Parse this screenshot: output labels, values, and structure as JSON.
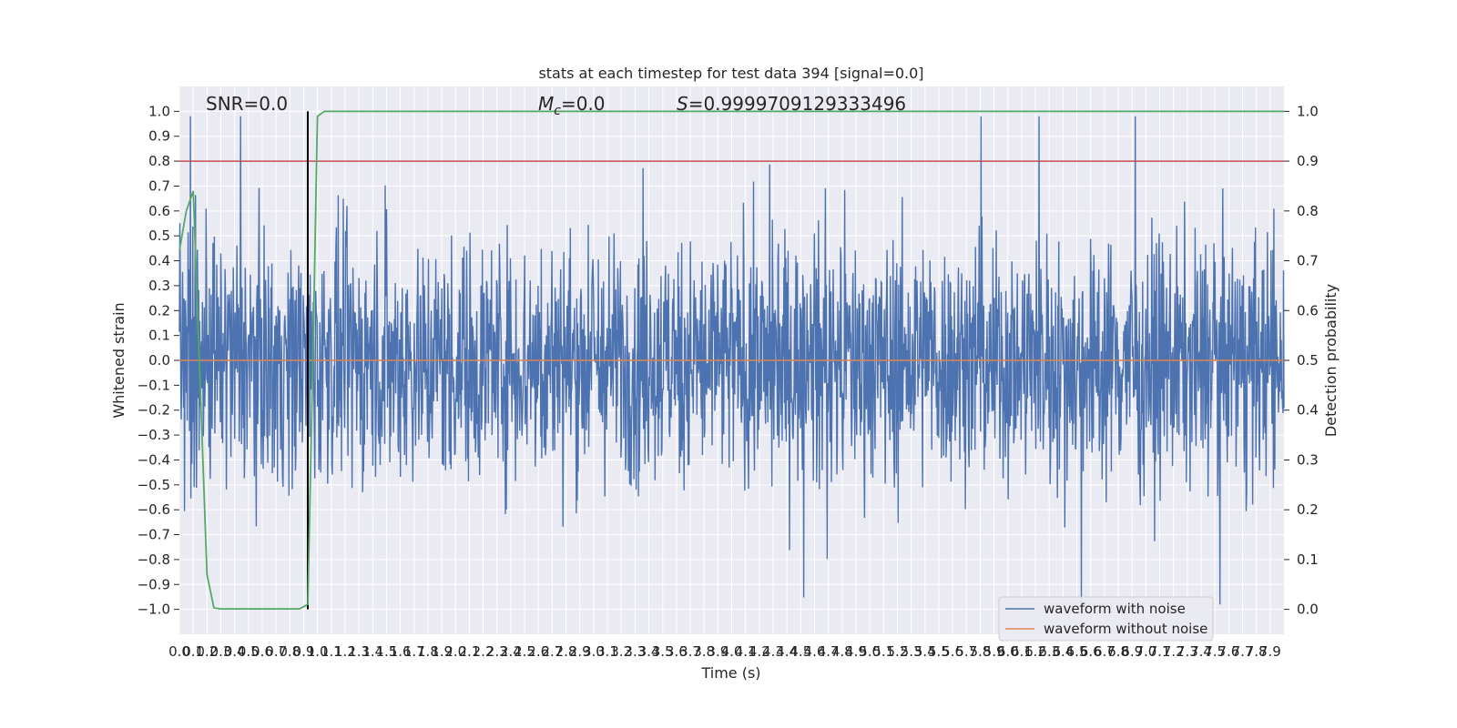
{
  "chart_data": {
    "type": "line",
    "title": "stats at each timestep for test data 394 [signal=0.0]",
    "xlabel": "Time (s)",
    "ylabel": "Whitened strain",
    "y2label": "Detection probability",
    "xlim": [
      0.0,
      8.0
    ],
    "ylim": [
      -1.1,
      1.1
    ],
    "y2lim": [
      -0.05,
      1.05
    ],
    "grid": true,
    "x_ticks": [
      "0.0",
      "0.1",
      "0.2",
      "0.3",
      "0.4",
      "0.5",
      "0.6",
      "0.7",
      "0.8",
      "0.9",
      "1.0",
      "1.1",
      "1.2",
      "1.3",
      "1.4",
      "1.5",
      "1.6",
      "1.7",
      "1.8",
      "1.9",
      "2.0",
      "2.1",
      "2.2",
      "2.3",
      "2.4",
      "2.5",
      "2.6",
      "2.7",
      "2.8",
      "2.9",
      "3.0",
      "3.1",
      "3.2",
      "3.3",
      "3.4",
      "3.5",
      "3.6",
      "3.7",
      "3.8",
      "3.9",
      "4.0",
      "4.1",
      "4.2",
      "4.3",
      "4.4",
      "4.5",
      "4.6",
      "4.7",
      "4.8",
      "4.9",
      "5.0",
      "5.1",
      "5.2",
      "5.3",
      "5.4",
      "5.5",
      "5.6",
      "5.7",
      "5.8",
      "5.9",
      "6.0",
      "6.1",
      "6.2",
      "6.3",
      "6.4",
      "6.5",
      "6.6",
      "6.7",
      "6.8",
      "6.9",
      "7.0",
      "7.1",
      "7.2",
      "7.3",
      "7.4",
      "7.5",
      "7.6",
      "7.7",
      "7.8",
      "7.9"
    ],
    "y_ticks": [
      "1.0",
      "0.9",
      "0.8",
      "0.7",
      "0.6",
      "0.5",
      "0.4",
      "0.3",
      "0.2",
      "0.1",
      "0.0",
      "−0.1",
      "−0.2",
      "−0.3",
      "−0.4",
      "−0.5",
      "−0.6",
      "−0.7",
      "−0.8",
      "−0.9",
      "−1.0"
    ],
    "y2_ticks": [
      "1.0",
      "0.9",
      "0.8",
      "0.7",
      "0.6",
      "0.5",
      "0.4",
      "0.3",
      "0.2",
      "0.1",
      "0.0"
    ],
    "annotations": {
      "snr": "SNR=0.0",
      "mc_symbol": "M",
      "mc_sub": "c",
      "mc_value": "=0.0",
      "stat_symbol": "S",
      "stat_value": "=0.9999709129333496"
    },
    "threshold": {
      "y2": 0.9,
      "color": "#c44e52"
    },
    "marker_line": {
      "x": 0.93,
      "y2_from": 0.0,
      "y2_to": 1.0,
      "color": "#000000"
    },
    "series": [
      {
        "name": "waveform with noise",
        "color": "#4c72b0",
        "envelope_approx": 0.5,
        "peak_abs_approx": 0.98
      },
      {
        "name": "waveform without noise",
        "color": "#dd8452",
        "value": 0.0
      }
    ],
    "probability_series": {
      "color": "#55a868",
      "x": [
        0.0,
        0.05,
        0.1,
        0.2,
        0.25,
        0.3,
        0.4,
        0.5,
        0.6,
        0.7,
        0.8,
        0.87,
        0.93,
        0.97,
        1.0,
        1.05,
        2.0,
        4.0,
        6.0,
        8.0
      ],
      "y": [
        0.72,
        0.8,
        0.84,
        0.07,
        0.003,
        0.001,
        0.001,
        0.001,
        0.001,
        0.001,
        0.001,
        0.001,
        0.01,
        0.55,
        0.99,
        1.0,
        1.0,
        1.0,
        1.0,
        1.0
      ]
    },
    "legend_position": "lower-right",
    "colors": {
      "background": "#eaeaf2",
      "grid": "#ffffff"
    }
  }
}
